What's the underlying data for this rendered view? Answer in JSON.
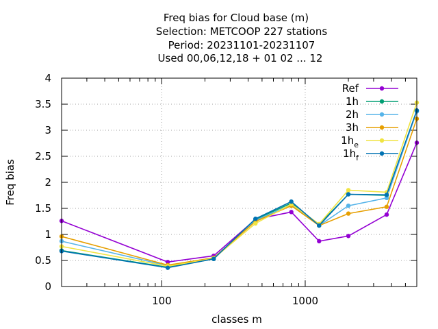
{
  "chart_data": {
    "type": "line",
    "title_lines": [
      "Freq bias  for Cloud base (m)",
      "Selection: METCOOP    227 stations",
      "Period: 20231101-20231107",
      "Used  00,06,12,18  + 01 02 ... 12"
    ],
    "xlabel": "classes m",
    "ylabel": "Freq bias",
    "xscale": "log",
    "xlim": [
      20,
      6000
    ],
    "ylim": [
      0,
      4
    ],
    "x_ticks": [
      100,
      1000
    ],
    "x_tick_labels": [
      "100",
      "1000"
    ],
    "y_ticks": [
      0,
      0.5,
      1,
      1.5,
      2,
      2.5,
      3,
      3.5,
      4
    ],
    "y_tick_labels": [
      "0",
      "0.5",
      "1",
      "1.5",
      "2",
      "2.5",
      "3",
      "3.5",
      "4"
    ],
    "grid": true,
    "legend_position": "top-right",
    "x": [
      20,
      110,
      230,
      450,
      800,
      1250,
      2000,
      3700,
      6000
    ],
    "series": [
      {
        "name": "Ref",
        "name_base": "Ref",
        "name_sub": "",
        "color": "#9400d3",
        "values": [
          1.26,
          0.47,
          0.59,
          1.29,
          1.43,
          0.87,
          0.97,
          1.38,
          2.76
        ]
      },
      {
        "name": "1h",
        "name_base": "1h",
        "name_sub": "",
        "color": "#009e73",
        "values": [
          0.69,
          0.37,
          0.53,
          1.29,
          1.6,
          1.19,
          1.77,
          1.75,
          3.37
        ]
      },
      {
        "name": "2h",
        "name_base": "2h",
        "name_sub": "",
        "color": "#56b4e9",
        "values": [
          0.87,
          0.4,
          0.55,
          1.27,
          1.57,
          1.17,
          1.55,
          1.7,
          3.36
        ]
      },
      {
        "name": "3h",
        "name_base": "3h",
        "name_sub": "",
        "color": "#e69f00",
        "values": [
          0.96,
          0.41,
          0.55,
          1.25,
          1.55,
          1.17,
          1.4,
          1.53,
          3.22
        ]
      },
      {
        "name": "1he",
        "name_base": "1h",
        "name_sub": "e",
        "color": "#f0e442",
        "values": [
          0.77,
          0.39,
          0.54,
          1.21,
          1.58,
          1.2,
          1.85,
          1.81,
          3.53
        ]
      },
      {
        "name": "1hf",
        "name_base": "1h",
        "name_sub": "f",
        "color": "#0072b2",
        "values": [
          0.68,
          0.36,
          0.53,
          1.3,
          1.63,
          1.17,
          1.77,
          1.76,
          3.38
        ]
      }
    ]
  }
}
